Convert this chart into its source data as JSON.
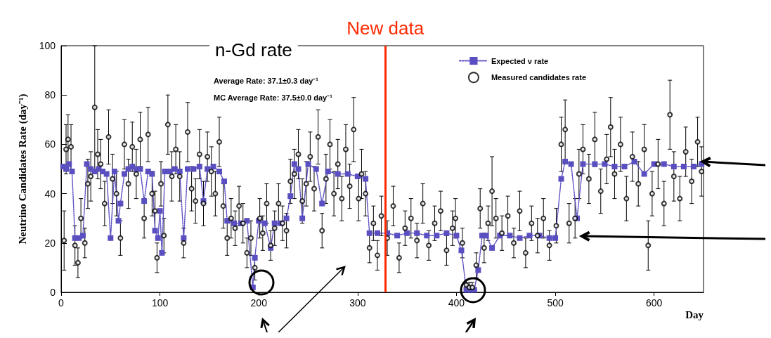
{
  "chart_data": {
    "type": "line",
    "xlabel": "Day",
    "ylabel": "Neutrino Candidates Rate (day⁻¹)",
    "annotations": [
      "n-Gd rate",
      "Average Rate: 37.1±0.3 day⁻¹",
      "MC Average Rate: 37.5±0.0 day⁻¹"
    ],
    "xlim": [
      0,
      650
    ],
    "ylim": [
      0,
      100
    ],
    "xticks": [
      0,
      100,
      200,
      300,
      400,
      500,
      600
    ],
    "yticks": [
      0,
      20,
      40,
      60,
      80,
      100
    ],
    "grid": false,
    "legend": "top right",
    "ref_lines": [
      {
        "axis": "x",
        "value": 328,
        "label": "New data",
        "color": "#ff2a00"
      }
    ],
    "series": [
      {
        "name": "Expected ν rate",
        "color": "#5a4fc0",
        "marker": "square",
        "line_style": "dotted",
        "x": [
          2,
          5,
          8,
          11,
          14,
          18,
          22,
          26,
          30,
          34,
          38,
          42,
          46,
          50,
          54,
          58,
          60,
          64,
          68,
          72,
          76,
          80,
          84,
          88,
          92,
          95,
          98,
          100,
          102,
          105,
          110,
          115,
          120,
          124,
          128,
          134,
          140,
          144,
          148,
          154,
          160,
          165,
          168,
          175,
          182,
          188,
          194,
          196,
          200,
          206,
          212,
          216,
          222,
          228,
          232,
          236,
          240,
          244,
          250,
          258,
          264,
          270,
          280,
          290,
          300,
          308,
          312,
          320,
          330,
          340,
          350,
          360,
          370,
          380,
          390,
          400,
          405,
          410,
          414,
          418,
          422,
          426,
          430,
          436,
          444,
          454,
          464,
          474,
          484,
          494,
          500,
          506,
          510,
          516,
          522,
          528,
          540,
          550,
          560,
          570,
          580,
          590,
          600,
          610,
          620,
          630,
          640,
          648
        ],
        "values": [
          51,
          50,
          52,
          49,
          22,
          22,
          23,
          52,
          50,
          49,
          50,
          49,
          48,
          22,
          49,
          29,
          36,
          48,
          50,
          51,
          50,
          50,
          37,
          49,
          48,
          25,
          22,
          33,
          16,
          49,
          49,
          50,
          49,
          22,
          50,
          50,
          51,
          37,
          50,
          51,
          49,
          45,
          29,
          28,
          28,
          29,
          2,
          14,
          29,
          28,
          18,
          28,
          28,
          30,
          39,
          52,
          50,
          30,
          52,
          50,
          36,
          49,
          48,
          48,
          47,
          46,
          24,
          24,
          24,
          23,
          24,
          24,
          23,
          23,
          24,
          23,
          17,
          1,
          1,
          1,
          9,
          23,
          23,
          18,
          23,
          23,
          22,
          23,
          23,
          22,
          22,
          46,
          53,
          52,
          30,
          52,
          52,
          52,
          51,
          51,
          53,
          48,
          52,
          52,
          51,
          51,
          51,
          52
        ]
      },
      {
        "name": "Measured candidates rate",
        "type": "scatter",
        "color": "#000000",
        "marker": "circle",
        "x": [
          3,
          5,
          7,
          10,
          14,
          17,
          20,
          24,
          27,
          30,
          34,
          37,
          40,
          44,
          48,
          52,
          56,
          60,
          64,
          68,
          72,
          76,
          80,
          84,
          88,
          92,
          95,
          97,
          101,
          104,
          108,
          112,
          116,
          120,
          124,
          128,
          132,
          136,
          140,
          144,
          148,
          152,
          156,
          160,
          164,
          168,
          172,
          176,
          180,
          184,
          188,
          192,
          196,
          201,
          204,
          208,
          212,
          216,
          220,
          224,
          228,
          232,
          236,
          240,
          244,
          248,
          252,
          256,
          260,
          264,
          268,
          272,
          276,
          280,
          284,
          288,
          292,
          296,
          301,
          304,
          308,
          312,
          316,
          320,
          324,
          330,
          336,
          342,
          348,
          354,
          360,
          366,
          372,
          378,
          384,
          390,
          396,
          399,
          406,
          410,
          413,
          416,
          420,
          424,
          428,
          432,
          436,
          440,
          446,
          452,
          458,
          464,
          470,
          476,
          482,
          488,
          494,
          501,
          506,
          510,
          514,
          520,
          524,
          528,
          534,
          540,
          546,
          552,
          556,
          560,
          566,
          572,
          578,
          584,
          590,
          594,
          598,
          604,
          610,
          616,
          620,
          626,
          632,
          638,
          644,
          648
        ],
        "values": [
          21,
          58,
          62,
          59,
          19,
          12,
          30,
          20,
          44,
          47,
          75,
          56,
          52,
          36,
          63,
          46,
          40,
          22,
          60,
          44,
          59,
          48,
          62,
          30,
          64,
          40,
          33,
          14,
          44,
          23,
          68,
          47,
          58,
          47,
          20,
          65,
          42,
          37,
          56,
          36,
          55,
          49,
          40,
          61,
          35,
          22,
          30,
          26,
          35,
          28,
          16,
          22,
          10,
          30,
          24,
          36,
          19,
          26,
          36,
          28,
          25,
          45,
          48,
          56,
          37,
          44,
          55,
          42,
          63,
          25,
          46,
          60,
          40,
          52,
          38,
          58,
          43,
          66,
          38,
          48,
          40,
          18,
          28,
          15,
          31,
          22,
          35,
          14,
          26,
          30,
          21,
          36,
          19,
          28,
          33,
          17,
          26,
          30,
          20,
          3,
          2,
          2,
          11,
          34,
          18,
          28,
          41,
          30,
          24,
          31,
          20,
          33,
          16,
          28,
          23,
          30,
          19,
          27,
          60,
          66,
          28,
          30,
          48,
          58,
          46,
          62,
          41,
          54,
          67,
          48,
          60,
          38,
          55,
          44,
          58,
          19,
          40,
          52,
          36,
          72,
          47,
          38,
          57,
          45,
          61,
          49
        ],
        "errors": [
          12,
          10,
          10,
          9,
          8,
          6,
          8,
          6,
          10,
          10,
          25,
          10,
          10,
          9,
          11,
          10,
          9,
          7,
          10,
          10,
          10,
          10,
          11,
          8,
          11,
          9,
          8,
          6,
          9,
          7,
          12,
          10,
          10,
          10,
          6,
          12,
          9,
          9,
          10,
          9,
          10,
          10,
          9,
          10,
          9,
          7,
          8,
          7,
          8,
          8,
          6,
          7,
          5,
          8,
          7,
          8,
          6,
          7,
          8,
          7,
          7,
          9,
          10,
          10,
          9,
          9,
          10,
          9,
          11,
          7,
          10,
          10,
          9,
          10,
          9,
          10,
          9,
          13,
          9,
          10,
          9,
          6,
          7,
          6,
          8,
          7,
          8,
          6,
          7,
          8,
          7,
          8,
          6,
          7,
          8,
          6,
          7,
          8,
          6,
          2,
          2,
          2,
          5,
          8,
          6,
          7,
          14,
          8,
          7,
          8,
          6,
          8,
          6,
          7,
          7,
          8,
          6,
          7,
          11,
          12,
          8,
          8,
          10,
          10,
          10,
          11,
          9,
          10,
          12,
          10,
          11,
          9,
          10,
          9,
          10,
          10,
          9,
          10,
          9,
          14,
          10,
          9,
          10,
          9,
          10,
          10
        ]
      }
    ]
  }
}
